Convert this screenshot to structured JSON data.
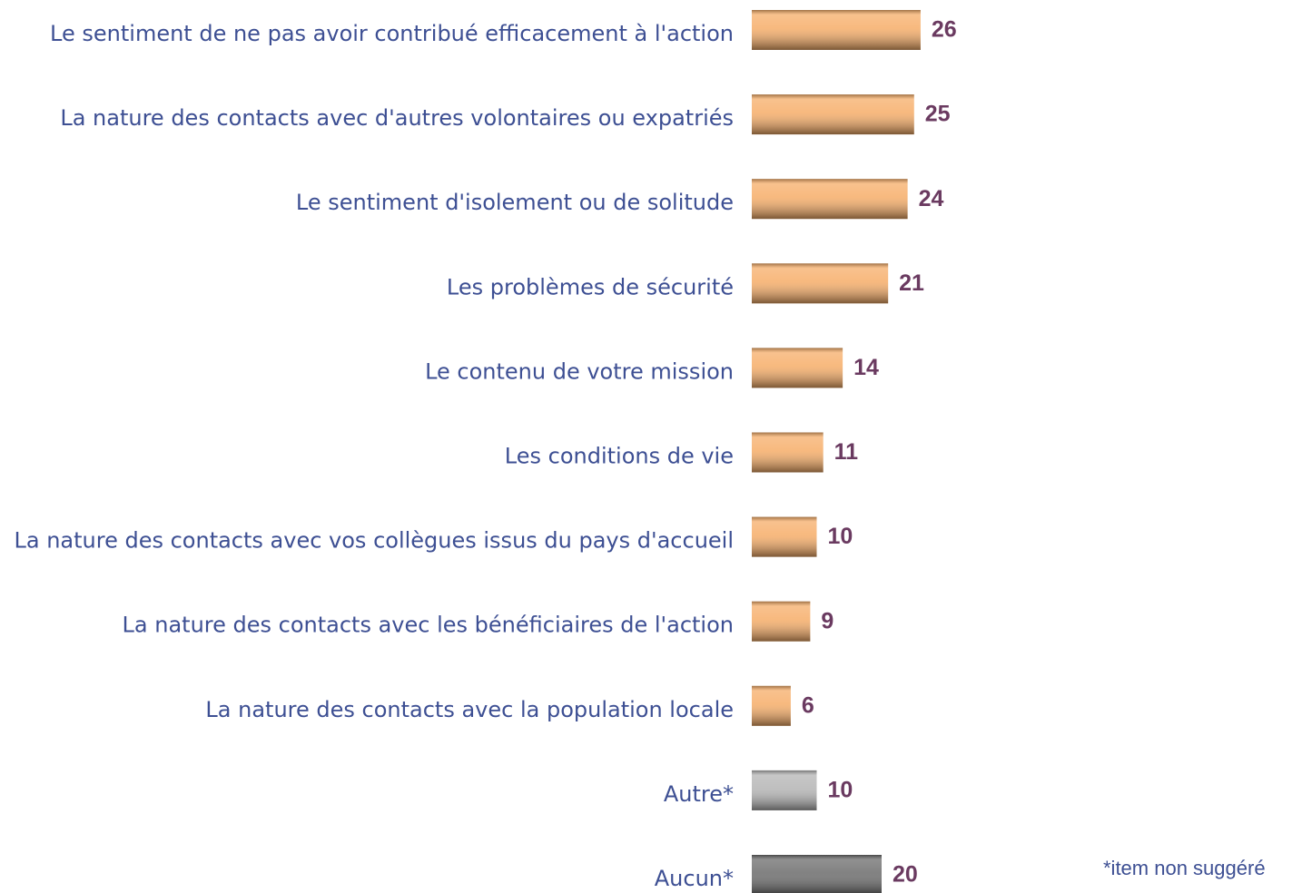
{
  "chart_data": {
    "type": "barh",
    "categories": [
      "Le sentiment de ne pas avoir contribué efficacement à l'action",
      "La nature des contacts avec d'autres volontaires ou expatriés",
      "Le sentiment d'isolement ou de solitude",
      "Les problèmes de sécurité",
      "Le contenu de votre mission",
      "Les conditions de vie",
      "La nature des contacts avec vos collègues issus du pays d'accueil",
      "La nature des contacts avec les bénéficiaires de l'action",
      "La nature des contacts avec la population locale",
      "Autre*",
      "Aucun*"
    ],
    "values": [
      26,
      25,
      24,
      21,
      14,
      11,
      10,
      9,
      6,
      10,
      20
    ],
    "colors": [
      "#f6ad68",
      "#f6ad68",
      "#f6ad68",
      "#f6ad68",
      "#f6ad68",
      "#f6ad68",
      "#f6ad68",
      "#f6ad68",
      "#f6ad68",
      "#b4b4b4",
      "#6c6c6c"
    ],
    "annotation": "*item non suggéré"
  }
}
